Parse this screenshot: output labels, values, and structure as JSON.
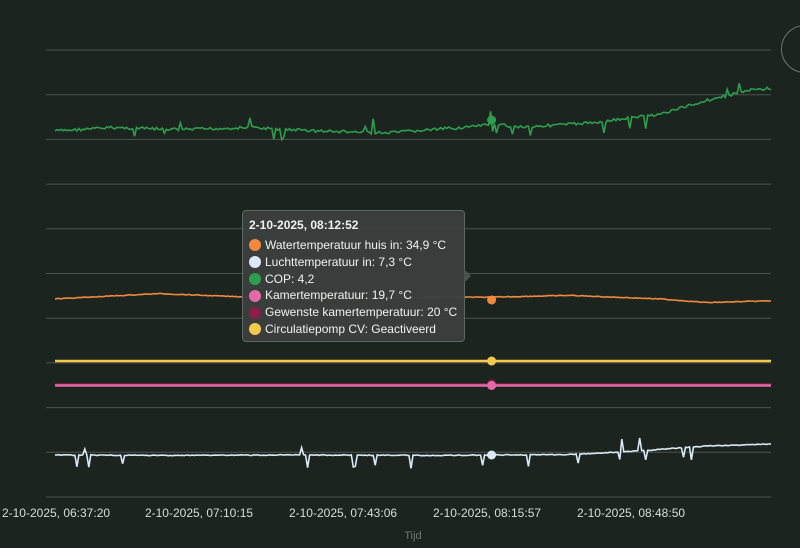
{
  "chart_data": {
    "type": "line",
    "xlabel": "Tijd",
    "x_ticks": [
      "2-10-2025, 06:37:20",
      "2-10-2025, 07:10:15",
      "2-10-2025, 07:43:06",
      "2-10-2025, 08:15:57",
      "2-10-2025, 08:48:50"
    ],
    "x_range": [
      "06:37:20",
      "09:14:00"
    ],
    "grid": true,
    "series": [
      {
        "name": "COP",
        "color": "#2e9e4e",
        "times": [
          "06:37",
          "06:50",
          "07:05",
          "07:20",
          "07:35",
          "07:50",
          "08:00",
          "08:10",
          "08:12",
          "08:20",
          "08:35",
          "08:50",
          "09:00",
          "09:10",
          "09:14"
        ],
        "values": [
          4.1,
          4.15,
          4.12,
          4.15,
          4.1,
          4.07,
          4.12,
          4.17,
          4.2,
          4.16,
          4.22,
          4.35,
          4.55,
          4.7,
          4.72
        ]
      },
      {
        "name": "Watertemperatuur huis in",
        "color": "#f0883e",
        "times": [
          "06:37",
          "07:00",
          "07:20",
          "07:40",
          "08:00",
          "08:12",
          "08:30",
          "08:50",
          "09:00",
          "09:14"
        ],
        "values": [
          34.8,
          35.1,
          34.9,
          34.85,
          34.9,
          34.9,
          35.0,
          34.8,
          34.6,
          34.7
        ]
      },
      {
        "name": "Circulatiepomp CV",
        "color": "#f5c94d",
        "times": [
          "06:37",
          "09:14"
        ],
        "values": [
          1,
          1
        ]
      },
      {
        "name": "Gewenste kamertemperatuur",
        "color": "#8a1e49",
        "times": [
          "06:37",
          "09:14"
        ],
        "values": [
          20,
          20
        ]
      },
      {
        "name": "Kamertemperatuur",
        "color": "#e36aa8",
        "times": [
          "06:37",
          "09:14"
        ],
        "values": [
          19.7,
          19.7
        ]
      },
      {
        "name": "Luchttemperatuur in",
        "color": "#dce8f5",
        "times": [
          "06:37",
          "07:00",
          "07:30",
          "08:00",
          "08:12",
          "08:30",
          "08:45",
          "09:00",
          "09:14"
        ],
        "values": [
          7.3,
          7.28,
          7.3,
          7.28,
          7.3,
          7.32,
          7.5,
          7.75,
          7.85
        ]
      }
    ],
    "tooltip": {
      "title": "2-10-2025, 08:12:52",
      "time": "08:12:52",
      "rows": [
        {
          "label": "Watertemperatuur huis in: 34,9 °C",
          "color": "#f0883e"
        },
        {
          "label": "Luchttemperatuur in: 7,3 °C",
          "color": "#dce8f5"
        },
        {
          "label": "COP: 4,2",
          "color": "#2e9e4e"
        },
        {
          "label": "Kamertemperatuur: 19,7 °C",
          "color": "#e36aa8"
        },
        {
          "label": "Gewenste kamertemperatuur: 20 °C",
          "color": "#8a1e49"
        },
        {
          "label": "Circulatiepomp CV: Geactiveerd",
          "color": "#f5c94d"
        }
      ]
    }
  }
}
